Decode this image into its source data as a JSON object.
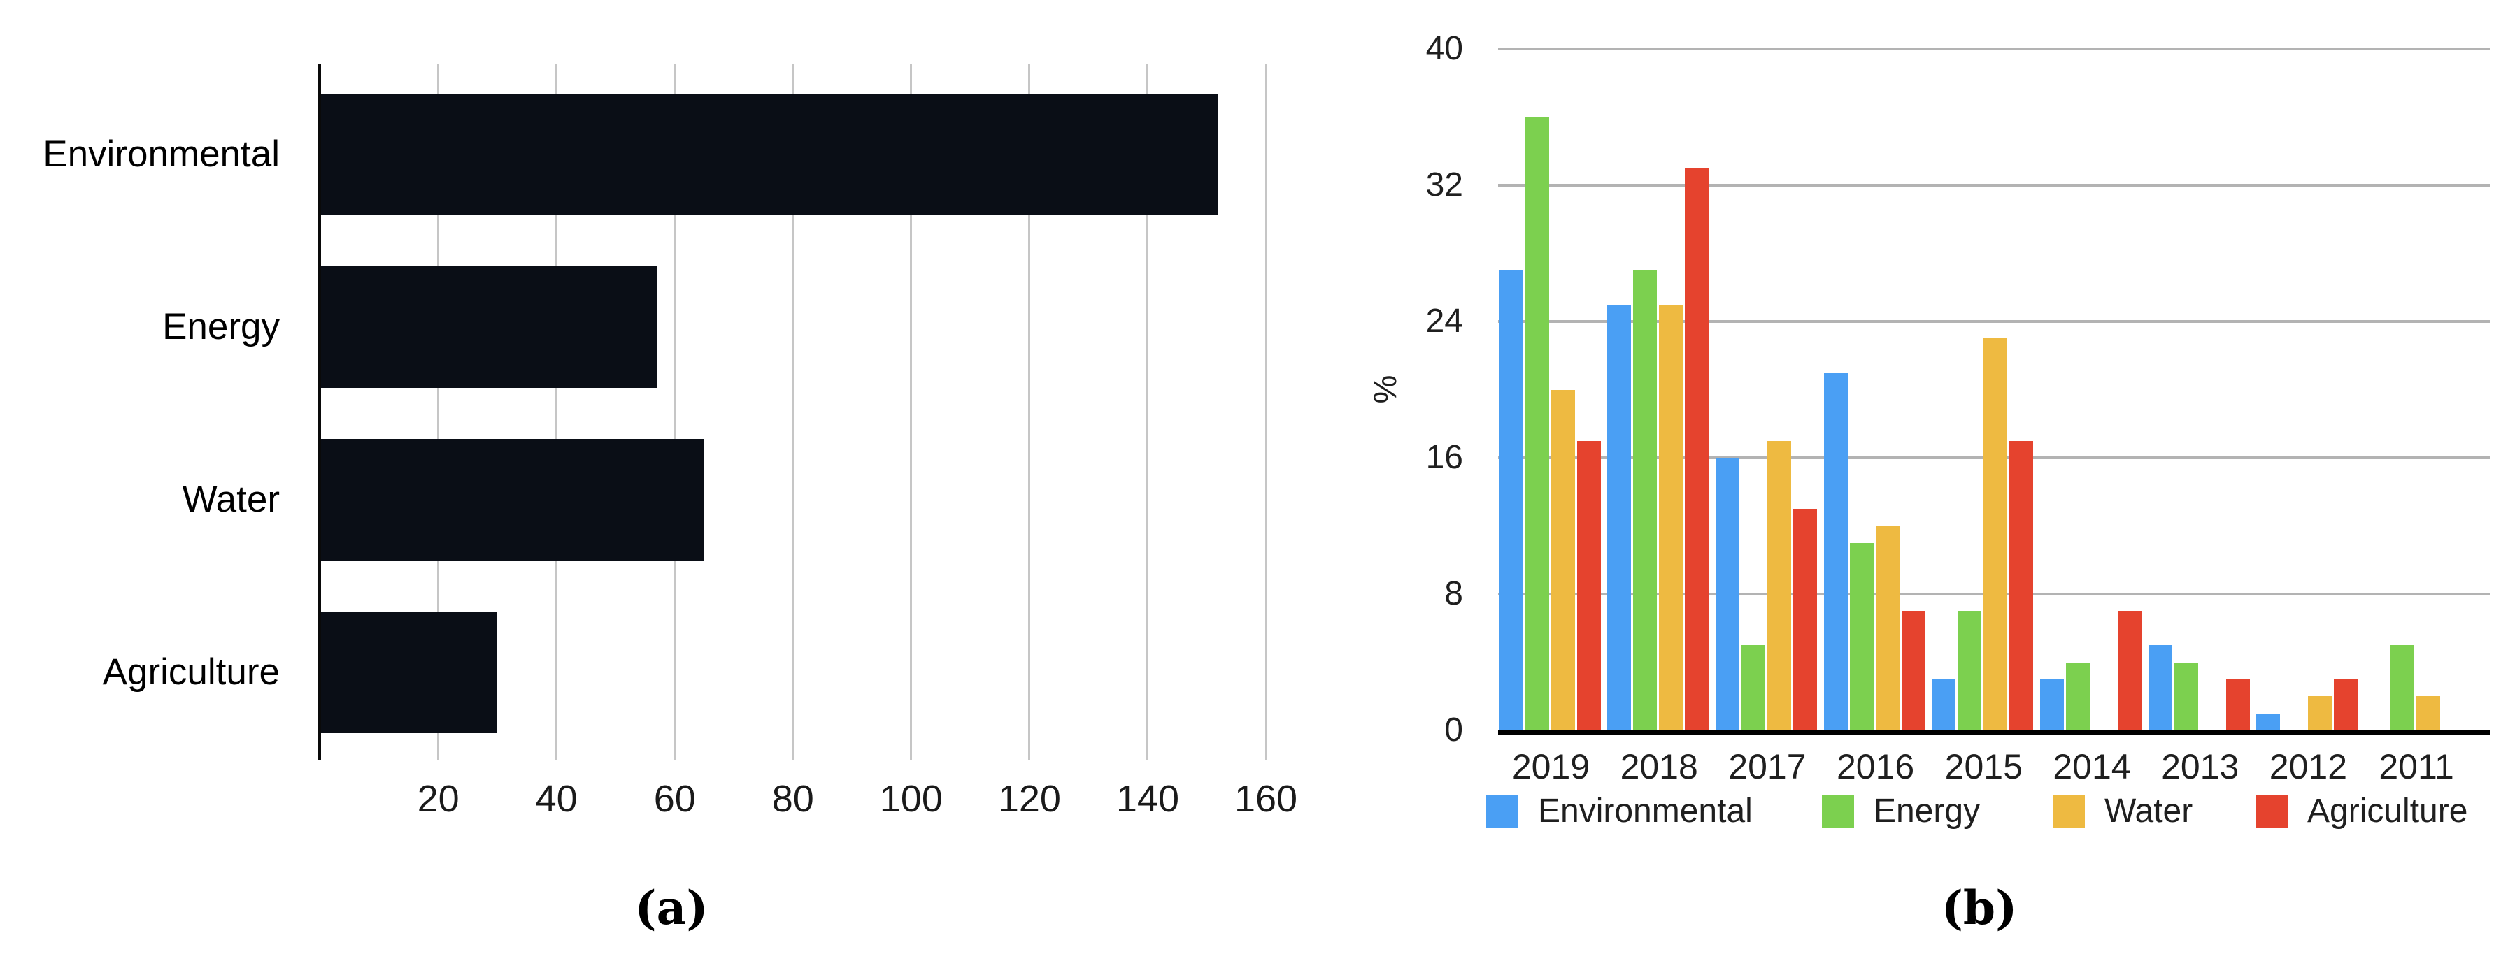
{
  "figure": {
    "background": "#ffffff",
    "text_color": "#1f1f1f"
  },
  "chart_data": [
    {
      "panel": "a",
      "type": "bar",
      "orientation": "horizontal",
      "title": "",
      "categories": [
        "Environmental",
        "Energy",
        "Water",
        "Agriculture"
      ],
      "values": [
        152,
        57,
        65,
        30
      ],
      "xlabel": "",
      "ylabel": "",
      "xlim": [
        0,
        160
      ],
      "xticks": [
        20,
        40,
        60,
        80,
        100,
        120,
        140,
        160
      ],
      "grid": "vertical-gridlines-on",
      "bar_color": "#0a0e16",
      "gridline_color": "#c6c6c6",
      "axis_color": "#0a0a0a",
      "caption": "(a)"
    },
    {
      "panel": "b",
      "type": "bar",
      "grouped": true,
      "title": "",
      "categories": [
        "2019",
        "2018",
        "2017",
        "2016",
        "2015",
        "2014",
        "2013",
        "2012",
        "2011"
      ],
      "series": [
        {
          "name": "Environmental",
          "color": "#4a9ff4",
          "values": [
            27,
            25,
            16,
            21,
            3,
            3,
            5,
            1,
            0
          ]
        },
        {
          "name": "Energy",
          "color": "#7cd04f",
          "values": [
            36,
            27,
            5,
            11,
            7,
            4,
            4,
            0,
            5
          ]
        },
        {
          "name": "Water",
          "color": "#eeba41",
          "values": [
            20,
            25,
            17,
            12,
            23,
            0,
            0,
            2,
            2
          ]
        },
        {
          "name": "Agriculture",
          "color": "#e5432e",
          "values": [
            17,
            33,
            13,
            7,
            17,
            7,
            3,
            3,
            0
          ]
        }
      ],
      "xlabel": "",
      "ylabel": "%",
      "ylim": [
        0,
        40
      ],
      "yticks": [
        0,
        8,
        16,
        24,
        32,
        40
      ],
      "grid": "horizontal-gridlines-on",
      "gridline_color": "#b3b3b3",
      "baseline_color": "#000000",
      "legend_position": "bottom",
      "caption": "(b)"
    }
  ]
}
